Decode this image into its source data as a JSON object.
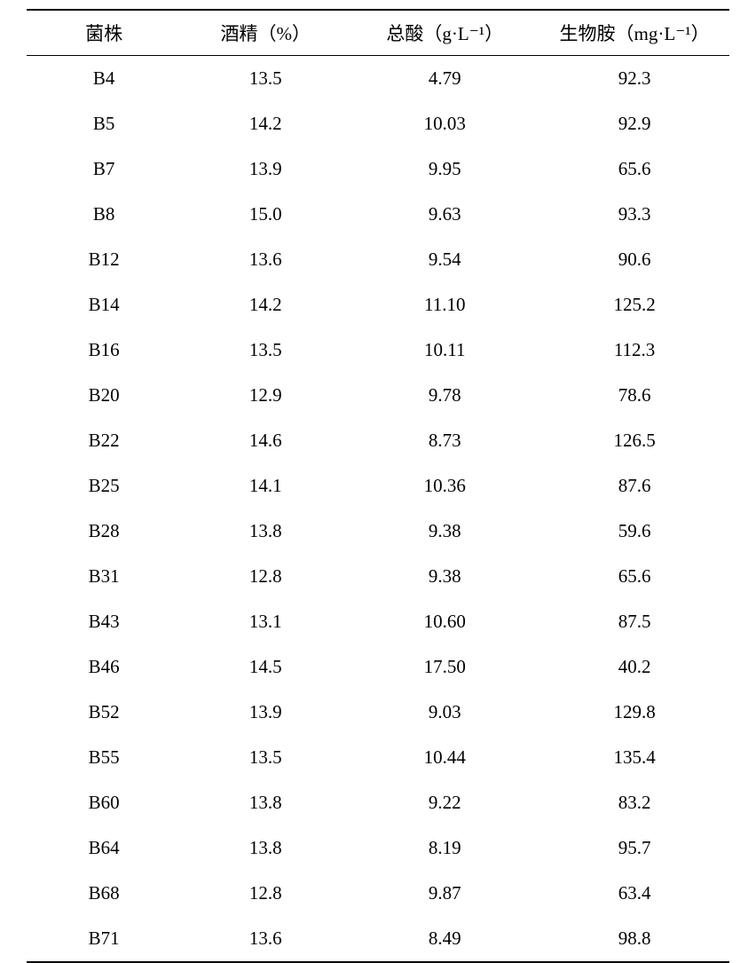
{
  "table": {
    "columns": [
      "菌株",
      "酒精（%）",
      "总酸（g·L⁻¹）",
      "生物胺（mg·L⁻¹）"
    ],
    "column_widths": [
      "22%",
      "24%",
      "27%",
      "27%"
    ],
    "header_fontsize": 21,
    "cell_fontsize": 21,
    "border_color": "#000000",
    "background_color": "#ffffff",
    "text_color": "#000000",
    "row_padding": 13,
    "header_padding": 10,
    "top_border_width": 2,
    "header_bottom_border_width": 1.5,
    "bottom_border_width": 2,
    "rows": [
      [
        "B4",
        "13.5",
        "4.79",
        "92.3"
      ],
      [
        "B5",
        "14.2",
        "10.03",
        "92.9"
      ],
      [
        "B7",
        "13.9",
        "9.95",
        "65.6"
      ],
      [
        "B8",
        "15.0",
        "9.63",
        "93.3"
      ],
      [
        "B12",
        "13.6",
        "9.54",
        "90.6"
      ],
      [
        "B14",
        "14.2",
        "11.10",
        "125.2"
      ],
      [
        "B16",
        "13.5",
        "10.11",
        "112.3"
      ],
      [
        "B20",
        "12.9",
        "9.78",
        "78.6"
      ],
      [
        "B22",
        "14.6",
        "8.73",
        "126.5"
      ],
      [
        "B25",
        "14.1",
        "10.36",
        "87.6"
      ],
      [
        "B28",
        "13.8",
        "9.38",
        "59.6"
      ],
      [
        "B31",
        "12.8",
        "9.38",
        "65.6"
      ],
      [
        "B43",
        "13.1",
        "10.60",
        "87.5"
      ],
      [
        "B46",
        "14.5",
        "17.50",
        "40.2"
      ],
      [
        "B52",
        "13.9",
        "9.03",
        "129.8"
      ],
      [
        "B55",
        "13.5",
        "10.44",
        "135.4"
      ],
      [
        "B60",
        "13.8",
        "9.22",
        "83.2"
      ],
      [
        "B64",
        "13.8",
        "8.19",
        "95.7"
      ],
      [
        "B68",
        "12.8",
        "9.87",
        "63.4"
      ],
      [
        "B71",
        "13.6",
        "8.49",
        "98.8"
      ]
    ]
  }
}
